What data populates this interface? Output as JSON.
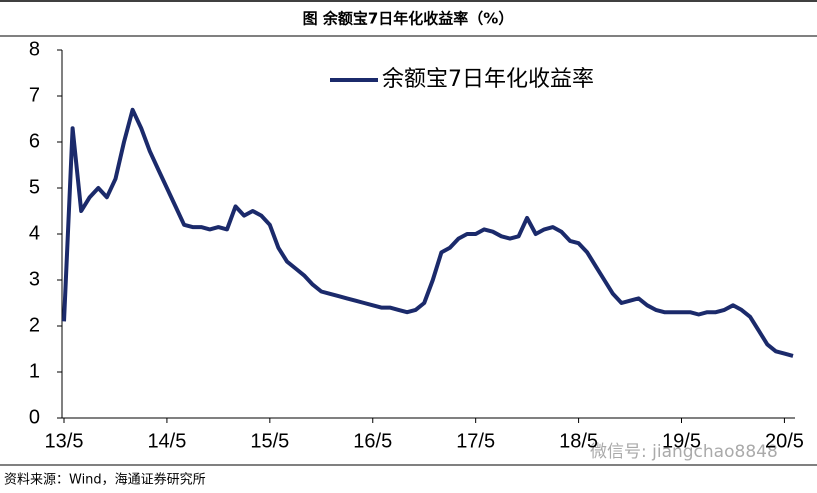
{
  "chart_data": {
    "type": "line",
    "title": "图  余额宝7日年化收益率（%）",
    "source": "资料来源：Wind，海通证券研究所",
    "watermark": "微信号: jiangchao8848",
    "categories": [
      "13/5",
      null,
      null,
      null,
      null,
      null,
      null,
      null,
      null,
      null,
      null,
      null,
      "14/5",
      null,
      null,
      null,
      null,
      null,
      null,
      null,
      null,
      null,
      null,
      null,
      "15/5",
      null,
      null,
      null,
      null,
      null,
      null,
      null,
      null,
      null,
      null,
      null,
      "16/5",
      null,
      null,
      null,
      null,
      null,
      null,
      null,
      null,
      null,
      null,
      null,
      "17/5",
      null,
      null,
      null,
      null,
      null,
      null,
      null,
      null,
      null,
      null,
      null,
      "18/5",
      null,
      null,
      null,
      null,
      null,
      null,
      null,
      null,
      null,
      null,
      null,
      "19/5",
      null,
      null,
      null,
      null,
      null,
      null,
      null,
      null,
      null,
      null,
      null,
      "20/5",
      null
    ],
    "series": [
      {
        "name": "余额宝7日年化收益率",
        "color": "#1b2a6b",
        "values": [
          2.1,
          6.3,
          4.5,
          4.8,
          5.0,
          4.8,
          5.2,
          6.0,
          6.7,
          6.3,
          5.8,
          5.4,
          5.0,
          4.6,
          4.2,
          4.15,
          4.15,
          4.1,
          4.15,
          4.1,
          4.6,
          4.4,
          4.5,
          4.4,
          4.2,
          3.7,
          3.4,
          3.25,
          3.1,
          2.9,
          2.75,
          2.7,
          2.65,
          2.6,
          2.55,
          2.5,
          2.45,
          2.4,
          2.4,
          2.35,
          2.3,
          2.35,
          2.5,
          3.0,
          3.6,
          3.7,
          3.9,
          4.0,
          4.0,
          4.1,
          4.05,
          3.95,
          3.9,
          3.95,
          4.35,
          4.0,
          4.1,
          4.15,
          4.05,
          3.85,
          3.8,
          3.6,
          3.3,
          3.0,
          2.7,
          2.5,
          2.55,
          2.6,
          2.45,
          2.35,
          2.3,
          2.3,
          2.3,
          2.3,
          2.25,
          2.3,
          2.3,
          2.35,
          2.45,
          2.35,
          2.2,
          1.9,
          1.6,
          1.45,
          1.4,
          1.35
        ]
      }
    ],
    "ylim": [
      0,
      8
    ],
    "yticks": [
      0,
      1,
      2,
      3,
      4,
      5,
      6,
      7,
      8
    ],
    "grid": false
  }
}
